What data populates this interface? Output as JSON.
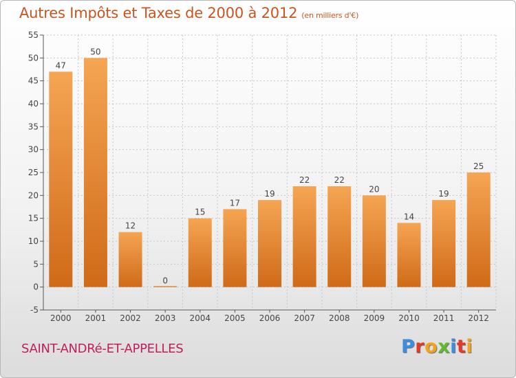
{
  "chart_data": {
    "type": "bar",
    "title": "Autres Impôts et Taxes de 2000 à 2012",
    "unit_note": "(en milliers d'€)",
    "categories": [
      "2000",
      "2001",
      "2002",
      "2003",
      "2004",
      "2005",
      "2006",
      "2007",
      "2008",
      "2009",
      "2010",
      "2011",
      "2012"
    ],
    "values": [
      47,
      50,
      12,
      0,
      15,
      17,
      19,
      22,
      22,
      20,
      14,
      19,
      25
    ],
    "ylim": [
      -5,
      55
    ],
    "yticks": [
      -5,
      0,
      5,
      10,
      15,
      20,
      25,
      30,
      35,
      40,
      45,
      50,
      55
    ],
    "grid": true,
    "bar_color": "#f0923a",
    "bar_color_dark": "#cf6a18"
  },
  "footer": {
    "commune": "SAINT-ANDRé-ET-APPELLES",
    "commune_color": "#c01f5a"
  },
  "logo": {
    "text": "Proxiti",
    "letter_colors": [
      "#3a8de0",
      "#e23a2a",
      "#f2a21c",
      "#5fba2e",
      "#3a8de0",
      "#e23a2a",
      "#f2a21c"
    ]
  }
}
